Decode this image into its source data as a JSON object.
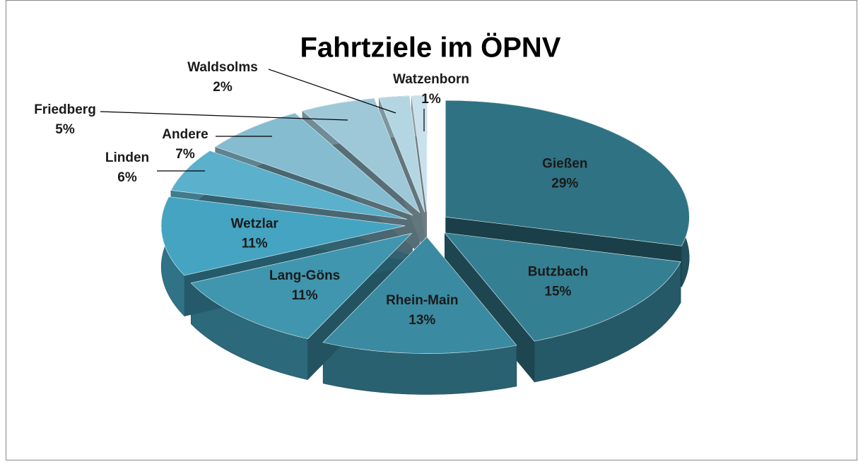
{
  "chart_data": {
    "type": "pie",
    "title": "Fahrtziele im ÖPNV",
    "categories": [
      "Gießen",
      "Butzbach",
      "Rhein-Main",
      "Lang-Göns",
      "Wetzlar",
      "Linden",
      "Andere",
      "Friedberg",
      "Waldsolms",
      "Watzenborn"
    ],
    "values": [
      29,
      15,
      13,
      11,
      11,
      6,
      7,
      5,
      2,
      1
    ],
    "value_labels": [
      "29%",
      "15%",
      "13%",
      "11%",
      "11%",
      "6%",
      "7%",
      "5%",
      "2%",
      "1%"
    ],
    "colors": [
      "#2f7283",
      "#357f93",
      "#3a8aa1",
      "#3f96ae",
      "#44a4c1",
      "#5bb0cb",
      "#85bccf",
      "#9ec8d8",
      "#b4d6e3",
      "#c9e1eb"
    ]
  }
}
